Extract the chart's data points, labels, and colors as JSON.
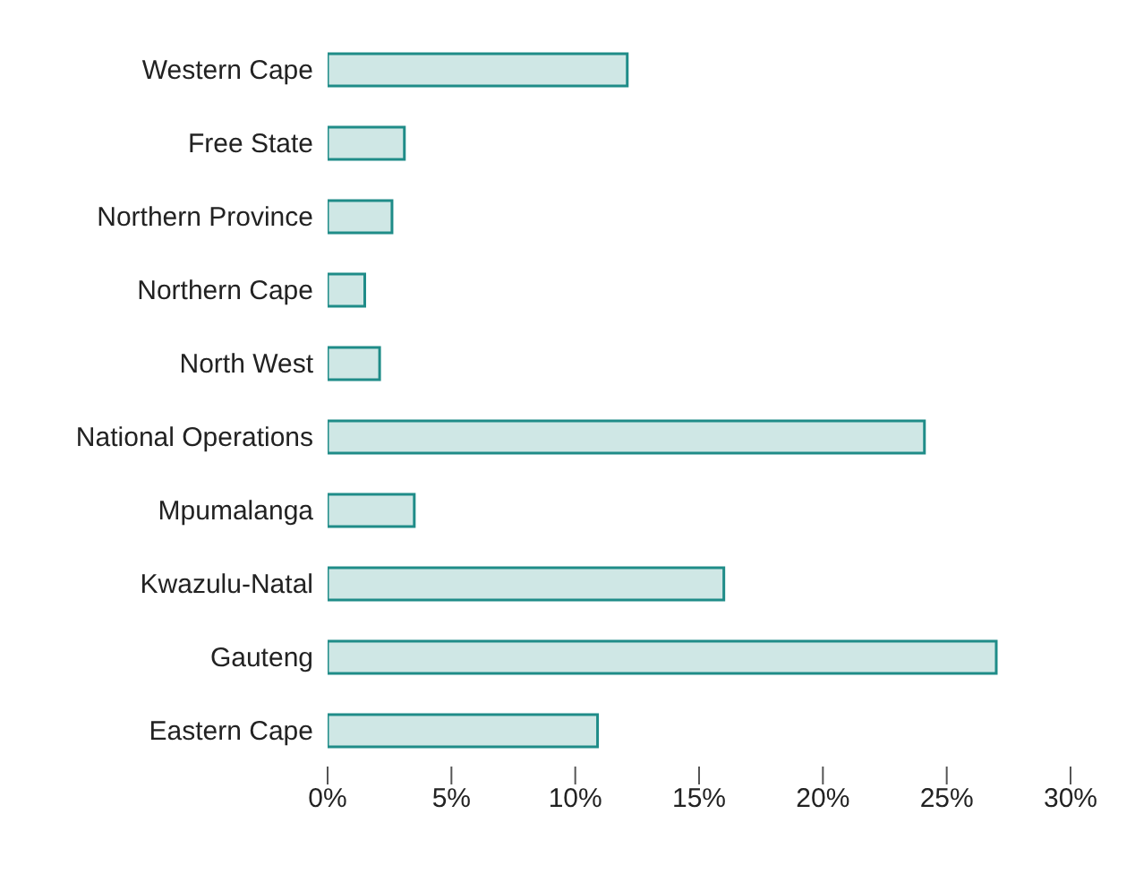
{
  "chart_data": {
    "type": "bar",
    "orientation": "horizontal",
    "categories": [
      "Western Cape",
      "Free State",
      "Northern Province",
      "Northern Cape",
      "North West",
      "National Operations",
      "Mpumalanga",
      "Kwazulu-Natal",
      "Gauteng",
      "Eastern Cape"
    ],
    "values": [
      12.1,
      3.1,
      2.6,
      1.5,
      2.1,
      24.1,
      3.5,
      16.0,
      27.0,
      10.9
    ],
    "color": "#1f8c88",
    "xlim": [
      0,
      30
    ],
    "xticks": [
      {
        "value": 0,
        "label": "0%"
      },
      {
        "value": 5,
        "label": "5%"
      },
      {
        "value": 10,
        "label": "10%"
      },
      {
        "value": 15,
        "label": "15%"
      },
      {
        "value": 20,
        "label": "20%"
      },
      {
        "value": 25,
        "label": "25%"
      },
      {
        "value": 30,
        "label": "30%"
      }
    ],
    "grid": false,
    "legend": false
  }
}
